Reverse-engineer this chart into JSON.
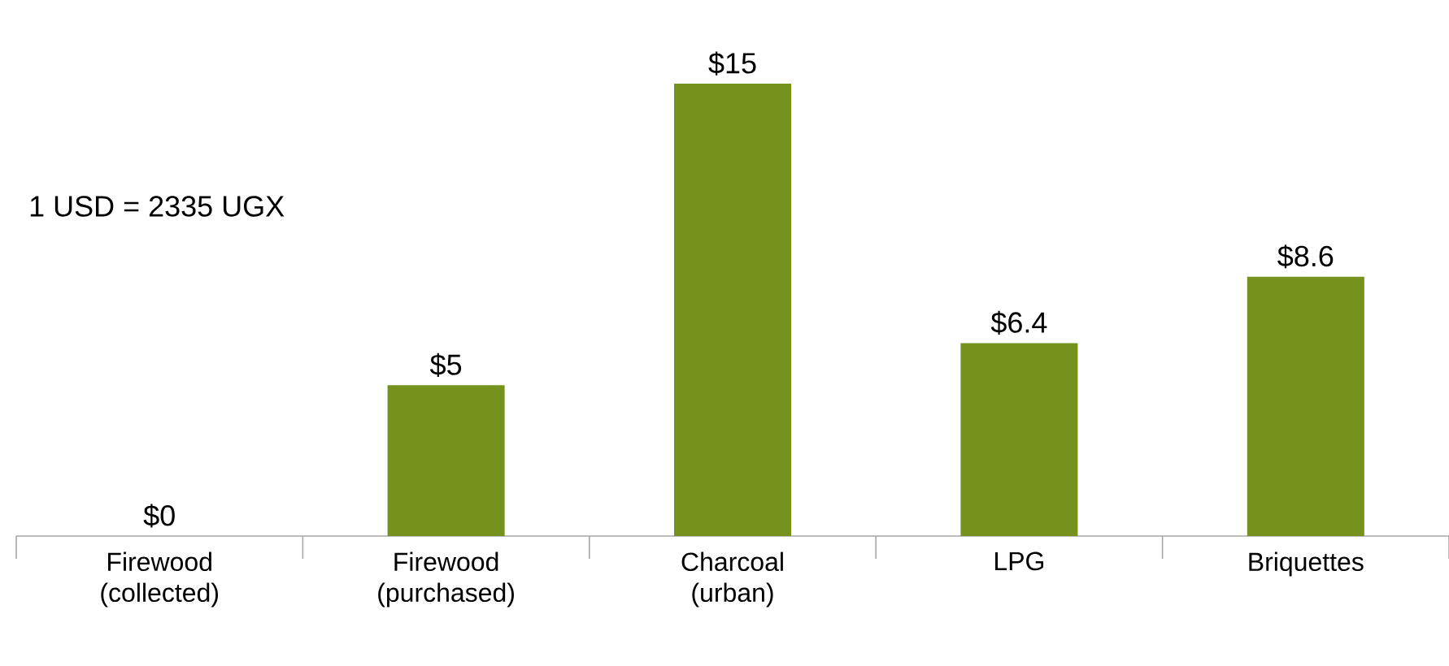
{
  "chart_data": {
    "type": "bar",
    "categories": [
      "Firewood (collected)",
      "Firewood (purchased)",
      "Charcoal (urban)",
      "LPG",
      "Briquettes"
    ],
    "values": [
      0,
      5,
      15,
      6.4,
      8.6
    ],
    "value_labels": [
      "$0",
      "$5",
      "$15",
      "$6.4",
      "$8.6"
    ],
    "color": "#76921e",
    "tick_labels": "x",
    "annotations": [
      "1 USD = 2335 UGX"
    ]
  }
}
